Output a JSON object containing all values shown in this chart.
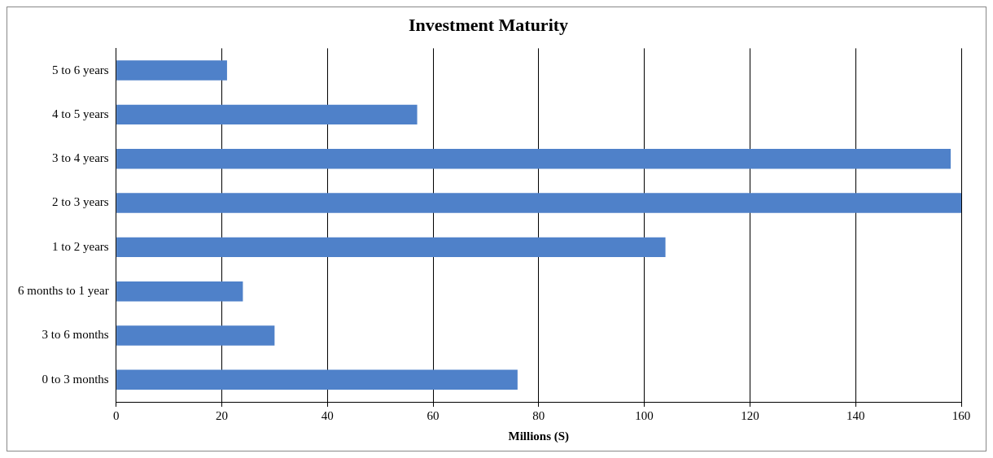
{
  "chart_data": {
    "type": "bar",
    "orientation": "horizontal",
    "title": "Investment Maturity",
    "xlabel": "Millions (S)",
    "categories": [
      "5 to 6 years",
      "4 to 5 years",
      "3 to 4 years",
      "2 to 3 years",
      "1 to 2 years",
      "6 months to 1 year",
      "3 to 6 months",
      "0 to 3 months"
    ],
    "values": [
      21,
      57,
      158,
      160,
      104,
      24,
      30,
      76
    ],
    "color": "#4f81c9",
    "xlim": [
      0,
      160
    ],
    "xticks": [
      0,
      20,
      40,
      60,
      80,
      100,
      120,
      140,
      160
    ],
    "grid": "x",
    "legend": false
  }
}
